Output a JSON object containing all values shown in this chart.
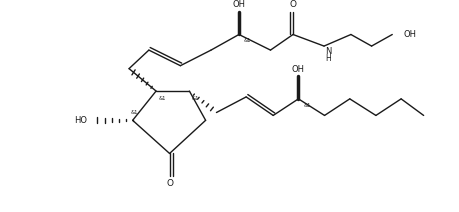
{
  "bg_color": "#ffffff",
  "line_color": "#1a1a1a",
  "figsize": [
    4.59,
    2.12
  ],
  "dpi": 100,
  "xlim": [
    0,
    10
  ],
  "ylim": [
    0,
    5
  ]
}
